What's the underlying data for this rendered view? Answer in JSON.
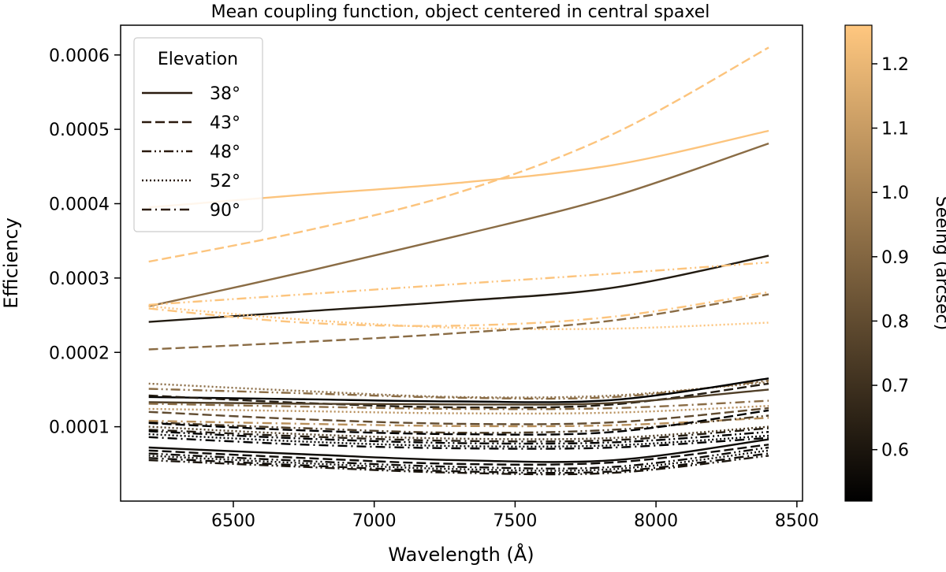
{
  "chart_data": {
    "type": "line",
    "title": "Mean coupling function, object centered in central spaxel",
    "xlabel": "Wavelength (Å)",
    "ylabel": "Efficiency",
    "xlim": [
      6100,
      8520
    ],
    "ylim": [
      0.0,
      0.00064
    ],
    "xticks": [
      6500,
      7000,
      7500,
      8000,
      8500
    ],
    "xtick_labels": [
      "6500",
      "7000",
      "7500",
      "8000",
      "8500"
    ],
    "yticks": [
      0.0001,
      0.0002,
      0.0003,
      0.0004,
      0.0005,
      0.0006
    ],
    "ytick_labels": [
      "0.0001",
      "0.0002",
      "0.0003",
      "0.0004",
      "0.0005",
      "0.0006"
    ],
    "grid": false,
    "legend": {
      "title": "Elevation",
      "placement": "upper-left",
      "entries": [
        {
          "label": "38°",
          "style": "solid"
        },
        {
          "label": "43°",
          "style": "dashed"
        },
        {
          "label": "48°",
          "style": "dashdotdot"
        },
        {
          "label": "52°",
          "style": "dotted"
        },
        {
          "label": "90°",
          "style": "dashdot"
        }
      ]
    },
    "colorbar": {
      "label": "Seeing (arcsec)",
      "colormap": "copper",
      "range": [
        0.52,
        1.26
      ],
      "ticks": [
        0.6,
        0.7,
        0.8,
        0.9,
        1.0,
        1.1,
        1.2
      ],
      "tick_labels": [
        "0.6",
        "0.7",
        "0.8",
        "0.9",
        "1.0",
        "1.1",
        "1.2"
      ],
      "color_low": "#000000",
      "color_high": "#ffc77f"
    },
    "x": [
      6200,
      6750,
      7300,
      7850,
      8400
    ],
    "series": [
      {
        "name": "38° s1.25",
        "elevation": "38°",
        "style": "solid",
        "seeing": 1.25,
        "values": [
          0.000395,
          0.000412,
          0.000428,
          0.000452,
          0.000498
        ]
      },
      {
        "name": "43° s1.25",
        "elevation": "43°",
        "style": "dashed",
        "seeing": 1.25,
        "values": [
          0.000322,
          0.000363,
          0.000415,
          0.000494,
          0.00061
        ]
      },
      {
        "name": "38° s0.92",
        "elevation": "38°",
        "style": "solid",
        "seeing": 0.92,
        "values": [
          0.000262,
          0.000308,
          0.000357,
          0.00041,
          0.000481
        ]
      },
      {
        "name": "38° s0.62",
        "elevation": "38°",
        "style": "solid",
        "seeing": 0.62,
        "values": [
          0.000241,
          0.000255,
          0.000269,
          0.000287,
          0.00033
        ]
      },
      {
        "name": "48° s1.25",
        "elevation": "48°",
        "style": "dashdotdot",
        "seeing": 1.25,
        "values": [
          0.000264,
          0.000278,
          0.000292,
          0.000306,
          0.000321
        ]
      },
      {
        "name": "90° s1.25",
        "elevation": "90°",
        "style": "dashdot",
        "seeing": 1.25,
        "values": [
          0.000259,
          0.00024,
          0.000236,
          0.000248,
          0.000281
        ]
      },
      {
        "name": "52° s1.25",
        "elevation": "52°",
        "style": "dotted",
        "seeing": 1.25,
        "values": [
          0.000262,
          0.000244,
          0.000233,
          0.000232,
          0.00024
        ]
      },
      {
        "name": "43° s0.92",
        "elevation": "43°",
        "style": "dashed",
        "seeing": 0.92,
        "values": [
          0.000204,
          0.000214,
          0.000226,
          0.000243,
          0.000278
        ]
      },
      {
        "name": "52° s0.92",
        "elevation": "52°",
        "style": "dotted",
        "seeing": 0.92,
        "values": [
          0.000158,
          0.000148,
          0.00014,
          0.000142,
          0.00016
        ]
      },
      {
        "name": "48° s0.92",
        "elevation": "48°",
        "style": "dashdotdot",
        "seeing": 0.92,
        "values": [
          0.000151,
          0.000145,
          0.000139,
          0.00014,
          0.000162
        ]
      },
      {
        "name": "38° s0.52",
        "elevation": "38°",
        "style": "solid",
        "seeing": 0.52,
        "values": [
          0.00014,
          0.000137,
          0.000134,
          0.000136,
          0.000165
        ]
      },
      {
        "name": "43° s0.62",
        "elevation": "43°",
        "style": "dashed",
        "seeing": 0.62,
        "values": [
          0.000142,
          0.000132,
          0.000126,
          0.00013,
          0.000158
        ]
      },
      {
        "name": "38° s0.75",
        "elevation": "38°",
        "style": "solid",
        "seeing": 0.75,
        "values": [
          0.000133,
          0.000131,
          0.00013,
          0.000132,
          0.00015
        ]
      },
      {
        "name": "90° s0.92",
        "elevation": "90°",
        "style": "dashdot",
        "seeing": 0.92,
        "values": [
          0.000131,
          0.000127,
          0.000124,
          0.000125,
          0.000135
        ]
      },
      {
        "name": "52° s1.05",
        "elevation": "52°",
        "style": "dotted",
        "seeing": 1.05,
        "values": [
          0.000124,
          0.000121,
          0.000118,
          0.000119,
          0.000128
        ]
      },
      {
        "name": "43° s0.80",
        "elevation": "43°",
        "style": "dashed",
        "seeing": 0.8,
        "values": [
          0.00012,
          0.00011,
          0.000104,
          0.000106,
          0.000125
        ]
      },
      {
        "name": "90° s1.05",
        "elevation": "90°",
        "style": "dashdot",
        "seeing": 1.05,
        "values": [
          0.000108,
          0.000104,
          0.000101,
          0.000102,
          0.000112
        ]
      },
      {
        "name": "48° s0.75",
        "elevation": "48°",
        "style": "dashdotdot",
        "seeing": 0.75,
        "values": [
          0.000106,
          9.8e-05,
          9.2e-05,
          9.6e-05,
          0.000115
        ]
      },
      {
        "name": "43° s0.52",
        "elevation": "43°",
        "style": "dashed",
        "seeing": 0.52,
        "values": [
          0.000105,
          9.5e-05,
          9e-05,
          9.3e-05,
          0.000122
        ]
      },
      {
        "name": "52° s0.75",
        "elevation": "52°",
        "style": "dotted",
        "seeing": 0.75,
        "values": [
          0.0001,
          9e-05,
          8.4e-05,
          8.5e-05,
          0.0001
        ]
      },
      {
        "name": "90° s0.62",
        "elevation": "90°",
        "style": "dashdot",
        "seeing": 0.62,
        "values": [
          9.6e-05,
          8.7e-05,
          8.1e-05,
          8.2e-05,
          9.8e-05
        ]
      },
      {
        "name": "48° s0.52",
        "elevation": "48°",
        "style": "dashdotdot",
        "seeing": 0.52,
        "values": [
          9.4e-05,
          8.4e-05,
          7.8e-05,
          7.9e-05,
          9.3e-05
        ]
      },
      {
        "name": "52° s0.52",
        "elevation": "52°",
        "style": "dotted",
        "seeing": 0.52,
        "values": [
          9e-05,
          8e-05,
          7.4e-05,
          7.5e-05,
          8.8e-05
        ]
      },
      {
        "name": "90° s0.52",
        "elevation": "90°",
        "style": "dashdot",
        "seeing": 0.52,
        "values": [
          8.6e-05,
          7.6e-05,
          7.1e-05,
          7.2e-05,
          8.5e-05
        ]
      },
      {
        "name": "38° s0.56",
        "elevation": "38°",
        "style": "solid",
        "seeing": 0.56,
        "values": [
          7.2e-05,
          6.3e-05,
          5.5e-05,
          5.5e-05,
          8.3e-05
        ]
      },
      {
        "name": "43° s0.56",
        "elevation": "43°",
        "style": "dashed",
        "seeing": 0.56,
        "values": [
          6.8e-05,
          5.8e-05,
          5e-05,
          5.2e-05,
          7.6e-05
        ]
      },
      {
        "name": "48° s0.56",
        "elevation": "48°",
        "style": "dashdotdot",
        "seeing": 0.56,
        "values": [
          6.4e-05,
          5.4e-05,
          4.6e-05,
          4.6e-05,
          7.2e-05
        ]
      },
      {
        "name": "52° s0.56",
        "elevation": "52°",
        "style": "dotted",
        "seeing": 0.56,
        "values": [
          6.1e-05,
          5.1e-05,
          4.3e-05,
          4.3e-05,
          6.8e-05
        ]
      },
      {
        "name": "90° s0.56",
        "elevation": "90°",
        "style": "dashdot",
        "seeing": 0.56,
        "values": [
          5.8e-05,
          4.8e-05,
          4e-05,
          4e-05,
          6.4e-05
        ]
      },
      {
        "name": "48° s0.60",
        "elevation": "48°",
        "style": "dashdotdot",
        "seeing": 0.6,
        "values": [
          5.5e-05,
          4.6e-05,
          3.8e-05,
          3.8e-05,
          6.1e-05
        ]
      }
    ]
  }
}
